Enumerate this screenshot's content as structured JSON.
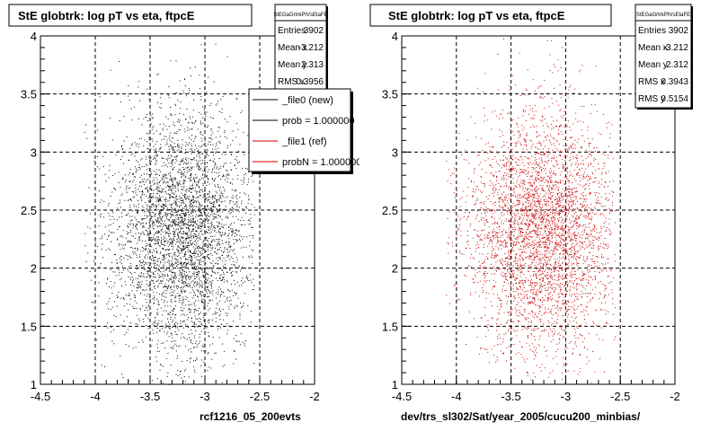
{
  "panels": [
    {
      "title": "StE globtrk: log pT vs eta, ftpcE",
      "stats": {
        "name": "StEGaGrtrkPtVsEtaFE",
        "rows": [
          {
            "label": "Entries",
            "value": "3902"
          },
          {
            "label": "Mean x",
            "value": "-3.212"
          },
          {
            "label": "Mean y",
            "value": "2.313"
          },
          {
            "label": "RMS x",
            "value": "0.3956"
          }
        ]
      },
      "legend": [
        {
          "label": "_file0 (new)",
          "color": "#000000"
        },
        {
          "label": "prob = 1.000000",
          "color": "#000000"
        },
        {
          "label": "_file1 (ref)",
          "color": "#cc0000"
        },
        {
          "label": "probN = 1.000000",
          "color": "#cc0000"
        }
      ],
      "xlabel": "rcf1216_05_200evts"
    },
    {
      "title": "StE globtrk: log pT vs eta, ftpcE",
      "stats": {
        "name": "StEGaGrtrkPtVsEtaFE",
        "rows": [
          {
            "label": "Entries",
            "value": "3902"
          },
          {
            "label": "Mean x",
            "value": "-3.212"
          },
          {
            "label": "Mean y",
            "value": "2.312"
          },
          {
            "label": "RMS x",
            "value": "0.3943"
          },
          {
            "label": "RMS y",
            "value": "0.5154"
          }
        ]
      },
      "xlabel": "dev/trs_sl302/Sat/year_2005/cucu200_minbias/"
    }
  ],
  "chart_data": [
    {
      "type": "scatter",
      "title": "StE globtrk: log pT vs eta, ftpcE",
      "xlim": [
        -4.5,
        -2
      ],
      "ylim": [
        1,
        4
      ],
      "xticks": [
        "-4.5",
        "-4",
        "-3.5",
        "-3",
        "-2.5",
        "-2"
      ],
      "yticks": [
        "1",
        "1.5",
        "2",
        "2.5",
        "3",
        "3.5",
        "4"
      ],
      "grid": true,
      "marker_color": "#000000",
      "entries": 3902,
      "mean_x": -3.212,
      "mean_y": 2.313,
      "rms_x": 0.3956,
      "rms_y": 0.515,
      "x_range": [
        -4.1,
        -2.9
      ],
      "legend_position": "top-right"
    },
    {
      "type": "scatter",
      "title": "StE globtrk: log pT vs eta, ftpcE",
      "xlim": [
        -4.5,
        -2
      ],
      "ylim": [
        1,
        4
      ],
      "xticks": [
        "-4.5",
        "-4",
        "-3.5",
        "-3",
        "-2.5",
        "-2"
      ],
      "yticks": [
        "1",
        "1.5",
        "2",
        "2.5",
        "3",
        "3.5",
        "4"
      ],
      "grid": true,
      "marker_color": "#cc0000",
      "entries": 3902,
      "mean_x": -3.212,
      "mean_y": 2.312,
      "rms_x": 0.3943,
      "rms_y": 0.5154,
      "x_range": [
        -4.1,
        -2.9
      ]
    }
  ]
}
